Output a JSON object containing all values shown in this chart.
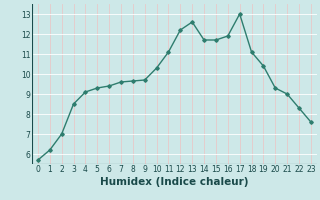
{
  "xlabel": "Humidex (Indice chaleur)",
  "x_values": [
    0,
    1,
    2,
    3,
    4,
    5,
    6,
    7,
    8,
    9,
    10,
    11,
    12,
    13,
    14,
    15,
    16,
    17,
    18,
    19,
    20,
    21,
    22,
    23
  ],
  "y_values": [
    5.7,
    6.2,
    7.0,
    8.5,
    9.1,
    9.3,
    9.4,
    9.6,
    9.65,
    9.7,
    10.3,
    11.1,
    12.2,
    12.6,
    11.7,
    11.7,
    11.9,
    13.0,
    11.1,
    10.4,
    9.3,
    9.0,
    8.3,
    7.6
  ],
  "line_color": "#2e7d6e",
  "marker": "D",
  "marker_size": 1.8,
  "line_width": 1.0,
  "bg_color": "#cde8e8",
  "grid_color": "#ffffff",
  "grid_color_minor": "#e8c8c8",
  "ylim": [
    5.5,
    13.5
  ],
  "xlim": [
    -0.5,
    23.5
  ],
  "yticks": [
    6,
    7,
    8,
    9,
    10,
    11,
    12,
    13
  ],
  "xticks": [
    0,
    1,
    2,
    3,
    4,
    5,
    6,
    7,
    8,
    9,
    10,
    11,
    12,
    13,
    14,
    15,
    16,
    17,
    18,
    19,
    20,
    21,
    22,
    23
  ],
  "tick_fontsize": 5.5,
  "xlabel_fontsize": 7.5,
  "axis_label_color": "#1a4a4a"
}
